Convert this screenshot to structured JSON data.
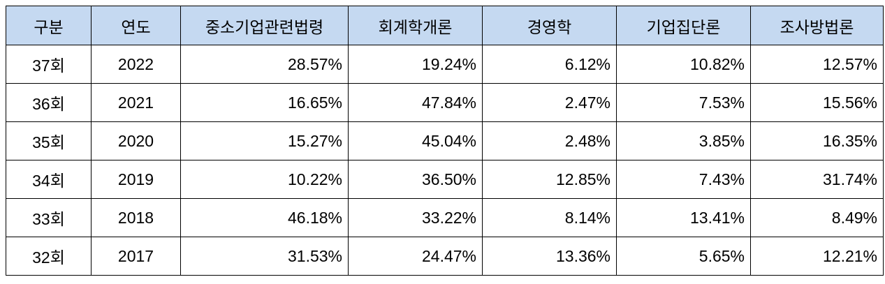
{
  "table": {
    "header": [
      "구분",
      "연도",
      "중소기업관련법령",
      "회계학개론",
      "경영학",
      "기업집단론",
      "조사방법론"
    ],
    "rows": [
      [
        "37회",
        "2022",
        "28.57%",
        "19.24%",
        "6.12%",
        "10.82%",
        "12.57%"
      ],
      [
        "36회",
        "2021",
        "16.65%",
        "47.84%",
        "2.47%",
        "7.53%",
        "15.56%"
      ],
      [
        "35회",
        "2020",
        "15.27%",
        "45.04%",
        "2.48%",
        "3.85%",
        "16.35%"
      ],
      [
        "34회",
        "2019",
        "10.22%",
        "36.50%",
        "12.85%",
        "7.43%",
        "31.74%"
      ],
      [
        "33회",
        "2018",
        "46.18%",
        "33.22%",
        "8.14%",
        "13.41%",
        "8.49%"
      ],
      [
        "32회",
        "2017",
        "31.53%",
        "24.47%",
        "13.36%",
        "5.65%",
        "12.21%"
      ]
    ]
  }
}
